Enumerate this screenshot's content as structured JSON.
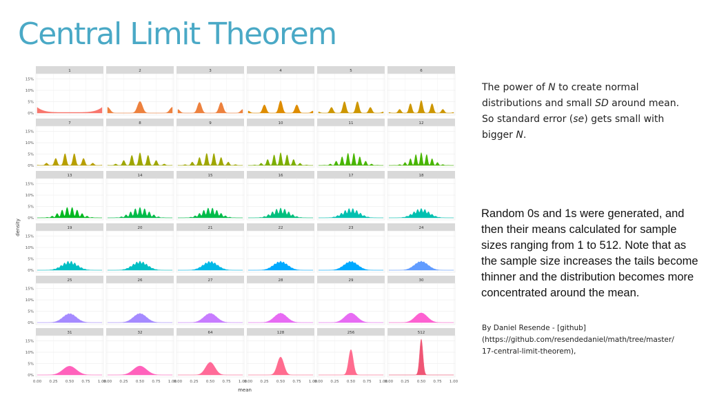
{
  "slide": {
    "title": "Central Limit Theorem",
    "text1": {
      "a": "The power of ",
      "b": "N",
      "c": " to create normal distributions and small ",
      "d": "SD",
      "e": " around mean. So standard error (",
      "f": "se",
      "g": ") gets small with bigger ",
      "h": "N",
      "i": "."
    },
    "text2": "Random 0s and 1s were generated, and then their means calculated for sample sizes ranging from 1 to 512. Note that as the sample size increases the tails become thinner and the distribution becomes more concentrated around the mean.",
    "attribution": {
      "line1": "By Daniel Resende - [github]",
      "line2": "(https://github.com/resendedaniel/math/tree/master/",
      "line3": "17-central-limit-theorem),"
    }
  },
  "chart_data": {
    "type": "area",
    "facet_labels": [
      "1",
      "2",
      "3",
      "4",
      "5",
      "6",
      "7",
      "8",
      "9",
      "10",
      "11",
      "12",
      "13",
      "14",
      "15",
      "16",
      "17",
      "18",
      "19",
      "20",
      "21",
      "22",
      "23",
      "24",
      "25",
      "26",
      "27",
      "28",
      "29",
      "30",
      "31",
      "32",
      "64",
      "128",
      "256",
      "512"
    ],
    "sample_sizes": [
      1,
      2,
      3,
      4,
      5,
      6,
      7,
      8,
      9,
      10,
      11,
      12,
      13,
      14,
      15,
      16,
      17,
      18,
      19,
      20,
      21,
      22,
      23,
      24,
      25,
      26,
      27,
      28,
      29,
      30,
      31,
      32,
      64,
      128,
      256,
      512
    ],
    "xlabel": "mean",
    "ylabel": "density",
    "x_ticks": [
      "0.00",
      "0.25",
      "0.50",
      "0.75",
      "1.00"
    ],
    "y_ticks": [
      "0%",
      "5%",
      "10%",
      "15%"
    ],
    "xlim": [
      0,
      1
    ],
    "ylim": [
      0,
      0.17
    ],
    "grid": true,
    "colors": [
      "#f8766d",
      "#ed813e",
      "#de8c00",
      "#cd9600",
      "#b79f00",
      "#9ea600",
      "#7cae00",
      "#48b500",
      "#00b81f",
      "#00bb49",
      "#00bf7d",
      "#00c0b0",
      "#00bfc4",
      "#00b8e7",
      "#00a9ff",
      "#619cff",
      "#a58aff",
      "#c77cff",
      "#e76bf3",
      "#fd61d1",
      "#ff62bc",
      "#ff6a98",
      "#ff6c8f",
      "#ef5675"
    ]
  }
}
